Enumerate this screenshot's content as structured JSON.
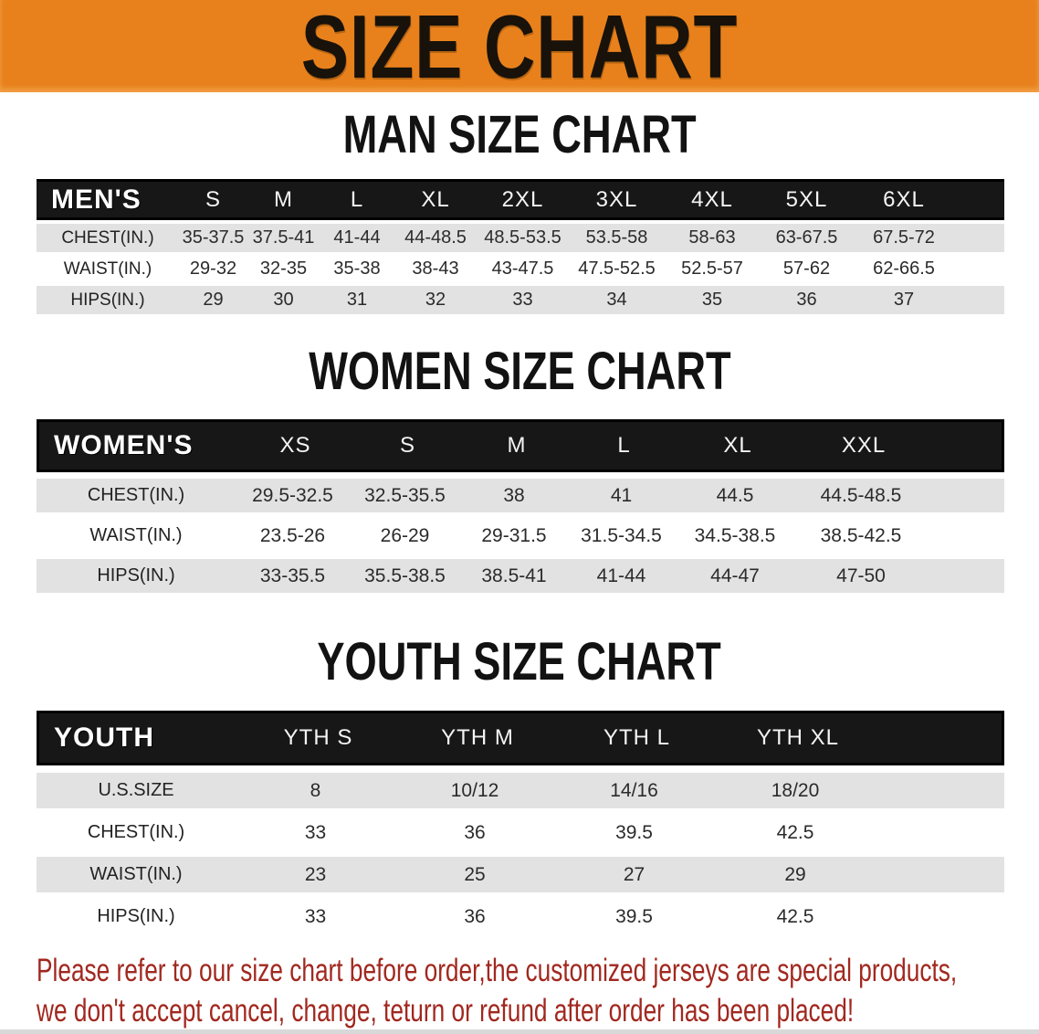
{
  "banner": {
    "title": "SIZE CHART",
    "bg_color": "#E8811C",
    "text_color": "#18120A"
  },
  "men": {
    "heading": "MAN SIZE CHART",
    "header_label": "MEN'S",
    "columns": [
      "S",
      "M",
      "L",
      "XL",
      "2XL",
      "3XL",
      "4XL",
      "5XL",
      "6XL"
    ],
    "rows": [
      {
        "label": "CHEST(IN.)",
        "values": [
          "35-37.5",
          "37.5-41",
          "41-44",
          "44-48.5",
          "48.5-53.5",
          "53.5-58",
          "58-63",
          "63-67.5",
          "67.5-72"
        ]
      },
      {
        "label": "WAIST(IN.)",
        "values": [
          "29-32",
          "32-35",
          "35-38",
          "38-43",
          "43-47.5",
          "47.5-52.5",
          "52.5-57",
          "57-62",
          "62-66.5"
        ]
      },
      {
        "label": "HIPS(IN.)",
        "values": [
          "29",
          "30",
          "31",
          "32",
          "33",
          "34",
          "35",
          "36",
          "37"
        ]
      }
    ]
  },
  "women": {
    "heading": "WOMEN SIZE CHART",
    "header_label": "WOMEN'S",
    "columns": [
      "XS",
      "S",
      "M",
      "L",
      "XL",
      "XXL"
    ],
    "rows": [
      {
        "label": "CHEST(IN.)",
        "values": [
          "29.5-32.5",
          "32.5-35.5",
          "38",
          "41",
          "44.5",
          "44.5-48.5"
        ]
      },
      {
        "label": "WAIST(IN.)",
        "values": [
          "23.5-26",
          "26-29",
          "29-31.5",
          "31.5-34.5",
          "34.5-38.5",
          "38.5-42.5"
        ]
      },
      {
        "label": "HIPS(IN.)",
        "values": [
          "33-35.5",
          "35.5-38.5",
          "38.5-41",
          "41-44",
          "44-47",
          "47-50"
        ]
      }
    ]
  },
  "youth": {
    "heading": "YOUTH SIZE CHART",
    "header_label": "YOUTH",
    "columns": [
      "YTH S",
      "YTH M",
      "YTH L",
      "YTH XL"
    ],
    "rows": [
      {
        "label": "U.S.SIZE",
        "values": [
          "8",
          "10/12",
          "14/16",
          "18/20"
        ]
      },
      {
        "label": "CHEST(IN.)",
        "values": [
          "33",
          "36",
          "39.5",
          "42.5"
        ]
      },
      {
        "label": "WAIST(IN.)",
        "values": [
          "23",
          "25",
          "27",
          "29"
        ]
      },
      {
        "label": "HIPS(IN.)",
        "values": [
          "33",
          "36",
          "39.5",
          "42.5"
        ]
      }
    ]
  },
  "footer": {
    "line1": "Please refer to our size chart before order,the customized jerseys are special products,",
    "line2": "we don't accept cancel, change, teturn or refund after order has been placed!",
    "text_color": "#A1281F"
  },
  "colors": {
    "header_band_bg": "#171717",
    "row_alt_bg": "#E2E2E2",
    "row_bg": "#FFFFFF",
    "body_text": "#2B2B2B"
  }
}
